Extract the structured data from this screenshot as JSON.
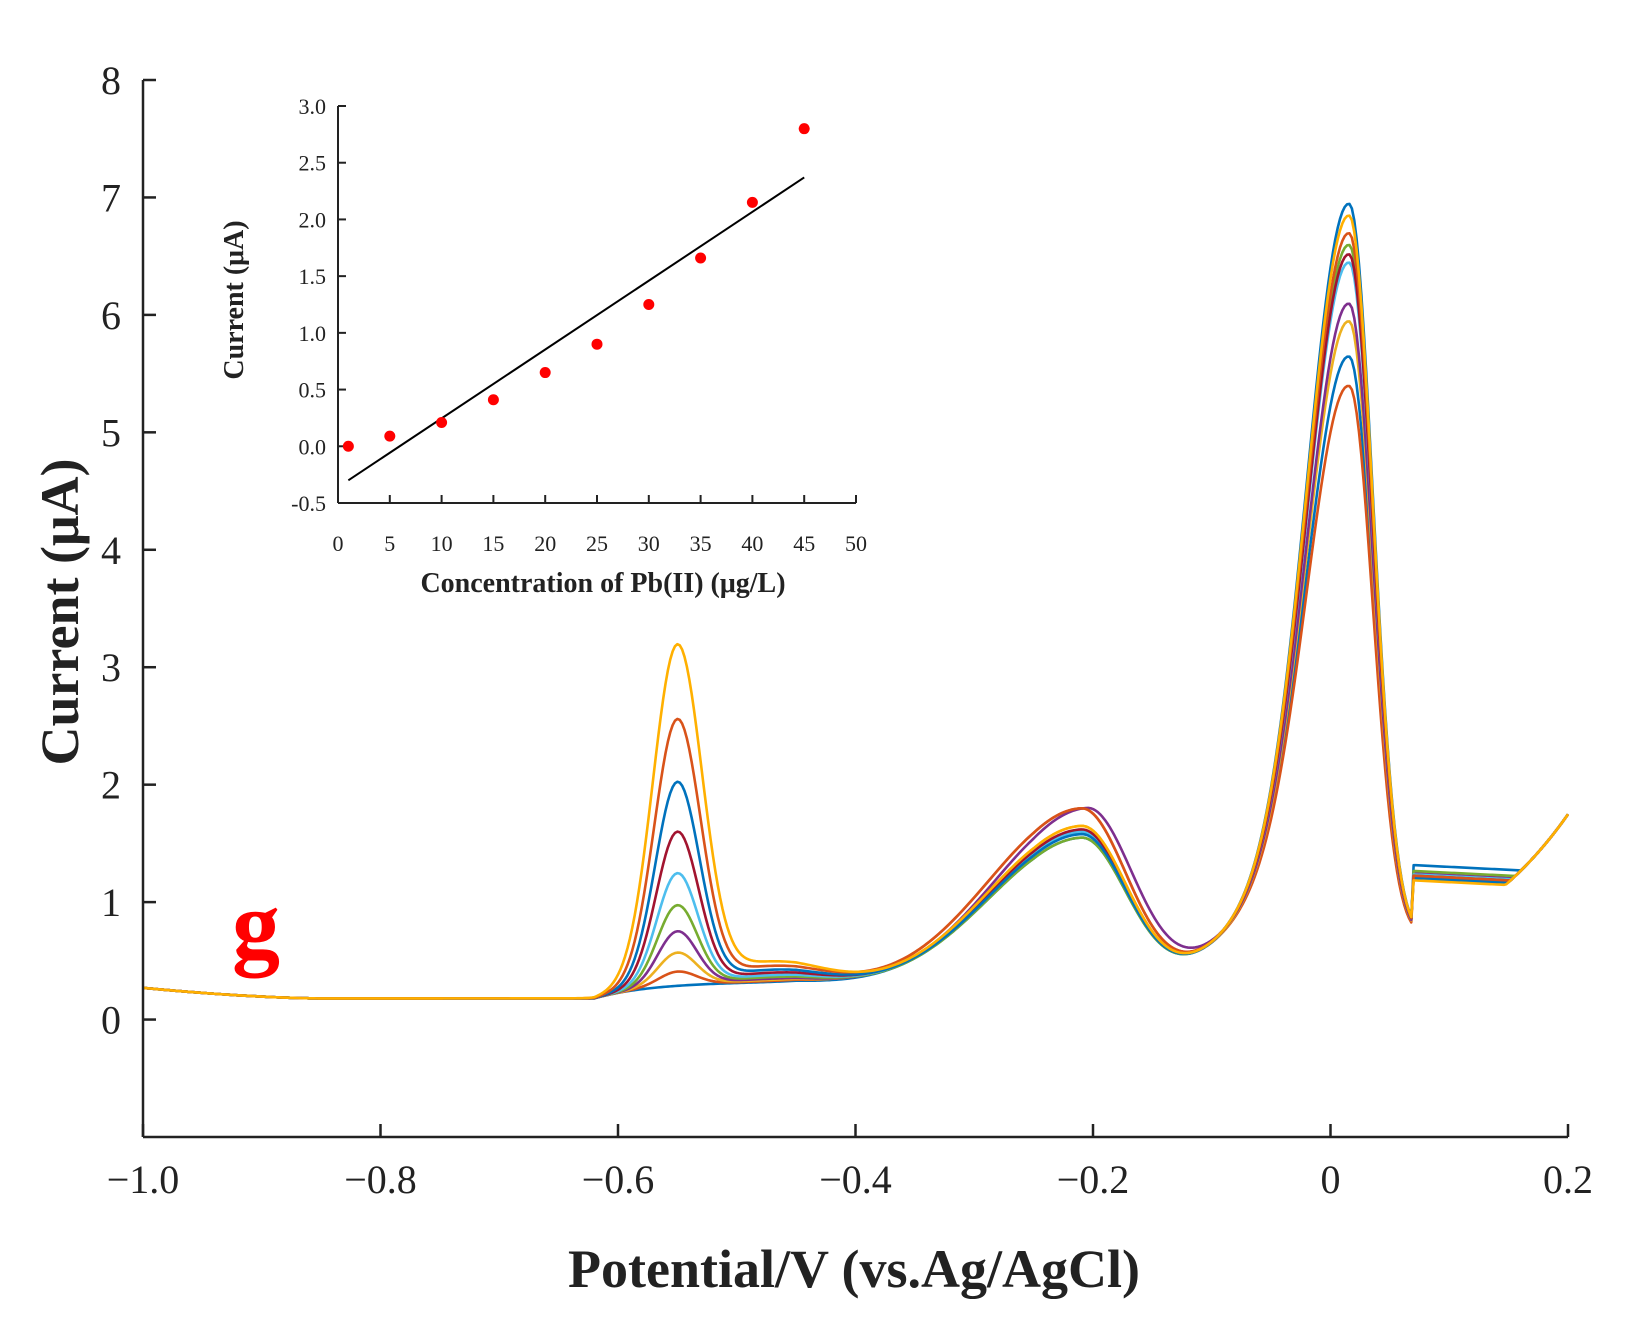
{
  "panel_label": "g",
  "chart_data": [
    {
      "type": "line",
      "title": "",
      "xlabel": "Potential/V (vs.Ag/AgCl)",
      "ylabel": "Current (μA)",
      "xlim": [
        -1.0,
        0.2
      ],
      "ylim": [
        -1,
        8
      ],
      "x_ticks": [
        -1.0,
        -0.8,
        -0.6,
        -0.4,
        -0.2,
        0,
        0.2
      ],
      "x_tick_labels": [
        "−1.0",
        "−0.8",
        "−0.6",
        "−0.4",
        "−0.2",
        "0",
        "0.2"
      ],
      "y_ticks": [
        0,
        1,
        2,
        3,
        4,
        5,
        6,
        7,
        8
      ],
      "y_tick_labels": [
        "0",
        "1",
        "2",
        "3",
        "4",
        "5",
        "6",
        "7",
        "8"
      ],
      "grid": false,
      "series": [
        {
          "color": "#0072BD",
          "pb_peak": 0.0,
          "mid_peak": 1.55,
          "main_peak": 5.95,
          "tail": 1.25,
          "flag": 0
        },
        {
          "color": "#D95319",
          "pb_peak": 0.12,
          "mid_peak": 1.8,
          "main_peak": 5.7,
          "tail": 1.13,
          "flag": 0
        },
        {
          "color": "#EDB120",
          "pb_peak": 0.28,
          "mid_peak": 1.65,
          "main_peak": 6.25,
          "tail": 1.15,
          "flag": 0
        },
        {
          "color": "#7E2F8E",
          "pb_peak": 0.46,
          "mid_peak": 1.8,
          "main_peak": 6.4,
          "tail": 1.18,
          "flag": 1
        },
        {
          "color": "#77AC30",
          "pb_peak": 0.68,
          "mid_peak": 1.55,
          "main_peak": 6.9,
          "tail": 1.2,
          "flag": 0
        },
        {
          "color": "#4DBEEE",
          "pb_peak": 0.95,
          "mid_peak": 1.6,
          "main_peak": 6.75,
          "tail": 1.17,
          "flag": 0
        },
        {
          "color": "#A2142F",
          "pb_peak": 1.3,
          "mid_peak": 1.62,
          "main_peak": 6.82,
          "tail": 1.16,
          "flag": 0
        },
        {
          "color": "#0072BD",
          "pb_peak": 1.72,
          "mid_peak": 1.58,
          "main_peak": 7.25,
          "tail": 1.14,
          "flag": 0
        },
        {
          "color": "#D95319",
          "pb_peak": 2.25,
          "mid_peak": 1.8,
          "main_peak": 7.0,
          "tail": 1.16,
          "flag": 0
        },
        {
          "color": "#FFB000",
          "pb_peak": 2.88,
          "mid_peak": 1.65,
          "main_peak": 7.15,
          "tail": 1.12,
          "flag": 0
        }
      ]
    },
    {
      "type": "scatter",
      "title": "",
      "xlabel": "Concentration of Pb(II) (μg/L)",
      "ylabel": "Current (μA)",
      "xlim": [
        0,
        50
      ],
      "ylim": [
        -0.5,
        3.0
      ],
      "x_ticks": [
        0,
        5,
        10,
        15,
        20,
        25,
        30,
        35,
        40,
        45,
        50
      ],
      "x_tick_labels": [
        "0",
        "5",
        "10",
        "15",
        "20",
        "25",
        "30",
        "35",
        "40",
        "45",
        "50"
      ],
      "y_ticks": [
        -0.5,
        0.0,
        0.5,
        1.0,
        1.5,
        2.0,
        2.5,
        3.0
      ],
      "y_tick_labels": [
        "-0.5",
        "0.0",
        "0.5",
        "1.0",
        "1.5",
        "2.0",
        "2.5",
        "3.0"
      ],
      "grid": false,
      "points": {
        "x": [
          1,
          5,
          10,
          15,
          20,
          25,
          30,
          35,
          40,
          45
        ],
        "y": [
          0.0,
          0.09,
          0.21,
          0.41,
          0.65,
          0.9,
          1.25,
          1.66,
          2.15,
          2.8
        ],
        "color": "#ff0000"
      },
      "fit_line": {
        "x": [
          1,
          45
        ],
        "y": [
          -0.3,
          2.37
        ],
        "color": "#000000"
      }
    }
  ]
}
